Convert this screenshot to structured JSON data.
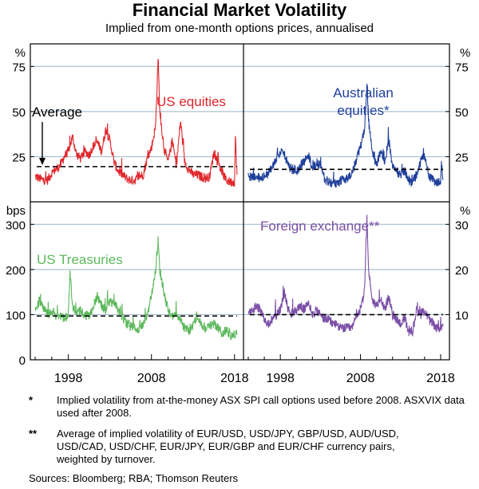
{
  "title": "Financial Market Volatility",
  "subtitle": "Implied from one-month options prices, annualised",
  "colors": {
    "us_equities": "#e0262b",
    "australian_equities": "#1f3f9a",
    "us_treasuries": "#5cb85c",
    "foreign_exchange": "#7b4fa6",
    "gridline": "#9bb3c7",
    "average_line": "#000000"
  },
  "notes": [
    {
      "mark": "*",
      "text": "Implied volatility from at-the-money ASX SPI call options used before 2008. ASXVIX data used after 2008."
    },
    {
      "mark": "**",
      "text": "Average of implied volatility of EUR/USD, USD/JPY, GBP/USD, AUD/USD, USD/CAD, USD/CHF, EUR/JPY, EUR/GBP and EUR/CHF currency pairs, weighted by turnover."
    }
  ],
  "sources": "Sources: Bloomberg; RBA; Thomson Reuters",
  "chart_data": [
    {
      "type": "line",
      "panel": "top-left",
      "series_label": "US equities",
      "unit": "%",
      "ylim": [
        0,
        87.5
      ],
      "yticks": [
        25,
        50,
        75
      ],
      "y_tick_labels": [
        "25",
        "50",
        "75"
      ],
      "xlim": [
        1994,
        2018.5
      ],
      "average": 19.5,
      "annotation": "Average",
      "points": [
        [
          1994,
          14
        ],
        [
          1994.5,
          13
        ],
        [
          1995,
          12
        ],
        [
          1995.5,
          12
        ],
        [
          1996,
          16
        ],
        [
          1996.5,
          18
        ],
        [
          1997,
          20
        ],
        [
          1997.5,
          25
        ],
        [
          1998,
          28
        ],
        [
          1998.5,
          36
        ],
        [
          1999,
          26
        ],
        [
          1999.5,
          24
        ],
        [
          2000,
          28
        ],
        [
          2000.5,
          26
        ],
        [
          2001,
          31
        ],
        [
          2001.5,
          33
        ],
        [
          2002,
          28
        ],
        [
          2002.5,
          40
        ],
        [
          2003,
          34
        ],
        [
          2003.5,
          22
        ],
        [
          2004,
          17
        ],
        [
          2004.5,
          15
        ],
        [
          2005,
          13
        ],
        [
          2005.5,
          12
        ],
        [
          2006,
          12
        ],
        [
          2006.5,
          14
        ],
        [
          2007,
          15
        ],
        [
          2007.5,
          24
        ],
        [
          2008,
          30
        ],
        [
          2008.5,
          42
        ],
        [
          2008.8,
          81
        ],
        [
          2009,
          50
        ],
        [
          2009.5,
          30
        ],
        [
          2010,
          22
        ],
        [
          2010.5,
          34
        ],
        [
          2011,
          20
        ],
        [
          2011.5,
          45
        ],
        [
          2012,
          22
        ],
        [
          2012.5,
          18
        ],
        [
          2013,
          15
        ],
        [
          2013.5,
          15
        ],
        [
          2014,
          14
        ],
        [
          2014.5,
          13
        ],
        [
          2015,
          14
        ],
        [
          2015.5,
          27
        ],
        [
          2016,
          22
        ],
        [
          2016.5,
          16
        ],
        [
          2017,
          12
        ],
        [
          2017.5,
          11
        ],
        [
          2018,
          11
        ],
        [
          2018.1,
          36
        ],
        [
          2018.3,
          15
        ]
      ]
    },
    {
      "type": "line",
      "panel": "top-right",
      "series_label": "Australian equities*",
      "unit": "%",
      "ylim": [
        0,
        87.5
      ],
      "yticks": [
        25,
        50,
        75
      ],
      "y_tick_labels": [
        "25",
        "50",
        "75"
      ],
      "xlim": [
        1994,
        2018.5
      ],
      "average": 18,
      "points": [
        [
          1994,
          15
        ],
        [
          1994.5,
          13
        ],
        [
          1995,
          14
        ],
        [
          1995.5,
          13
        ],
        [
          1996,
          14
        ],
        [
          1996.5,
          16
        ],
        [
          1997,
          20
        ],
        [
          1997.5,
          24
        ],
        [
          1998,
          28
        ],
        [
          1998.5,
          26
        ],
        [
          1999,
          20
        ],
        [
          1999.5,
          18
        ],
        [
          2000,
          17
        ],
        [
          2000.5,
          20
        ],
        [
          2001,
          22
        ],
        [
          2001.5,
          26
        ],
        [
          2002,
          18
        ],
        [
          2002.5,
          22
        ],
        [
          2003,
          20
        ],
        [
          2003.5,
          13
        ],
        [
          2004,
          11
        ],
        [
          2004.5,
          10
        ],
        [
          2005,
          10
        ],
        [
          2005.5,
          12
        ],
        [
          2006,
          12
        ],
        [
          2006.5,
          14
        ],
        [
          2007,
          16
        ],
        [
          2007.5,
          24
        ],
        [
          2008,
          30
        ],
        [
          2008.5,
          40
        ],
        [
          2008.8,
          66
        ],
        [
          2009,
          45
        ],
        [
          2009.5,
          28
        ],
        [
          2010,
          20
        ],
        [
          2010.5,
          28
        ],
        [
          2011,
          20
        ],
        [
          2011.5,
          35
        ],
        [
          2012,
          20
        ],
        [
          2012.5,
          17
        ],
        [
          2013,
          15
        ],
        [
          2013.5,
          17
        ],
        [
          2014,
          12
        ],
        [
          2014.5,
          11
        ],
        [
          2015,
          15
        ],
        [
          2015.5,
          22
        ],
        [
          2016,
          26
        ],
        [
          2016.5,
          15
        ],
        [
          2017,
          12
        ],
        [
          2017.5,
          11
        ],
        [
          2018,
          12
        ],
        [
          2018.1,
          21
        ],
        [
          2018.3,
          12
        ]
      ]
    },
    {
      "type": "line",
      "panel": "bottom-left",
      "series_label": "US Treasuries",
      "unit": "bps",
      "ylim": [
        0,
        350
      ],
      "yticks": [
        0,
        100,
        200,
        300
      ],
      "y_tick_labels": [
        "0",
        "100",
        "200",
        "300"
      ],
      "xlim": [
        1994,
        2018.5
      ],
      "x_tick_values": [
        1998,
        2008,
        2018
      ],
      "x_tick_labels": [
        "1998",
        "2008",
        "2018"
      ],
      "average": 97,
      "points": [
        [
          1994,
          110
        ],
        [
          1994.5,
          130
        ],
        [
          1995,
          115
        ],
        [
          1995.5,
          100
        ],
        [
          1996,
          105
        ],
        [
          1996.5,
          95
        ],
        [
          1997,
          100
        ],
        [
          1997.5,
          90
        ],
        [
          1998,
          100
        ],
        [
          1998.2,
          195
        ],
        [
          1998.5,
          120
        ],
        [
          1999,
          100
        ],
        [
          1999.5,
          110
        ],
        [
          2000,
          100
        ],
        [
          2000.5,
          95
        ],
        [
          2001,
          120
        ],
        [
          2001.5,
          140
        ],
        [
          2002,
          120
        ],
        [
          2002.5,
          110
        ],
        [
          2003,
          125
        ],
        [
          2003.5,
          130
        ],
        [
          2004,
          110
        ],
        [
          2004.5,
          95
        ],
        [
          2005,
          80
        ],
        [
          2005.5,
          75
        ],
        [
          2006,
          70
        ],
        [
          2006.5,
          68
        ],
        [
          2007,
          75
        ],
        [
          2007.5,
          100
        ],
        [
          2008,
          140
        ],
        [
          2008.5,
          200
        ],
        [
          2008.8,
          265
        ],
        [
          2009,
          200
        ],
        [
          2009.5,
          150
        ],
        [
          2010,
          110
        ],
        [
          2010.5,
          95
        ],
        [
          2011,
          100
        ],
        [
          2011.5,
          85
        ],
        [
          2012,
          70
        ],
        [
          2012.5,
          65
        ],
        [
          2013,
          75
        ],
        [
          2013.5,
          100
        ],
        [
          2014,
          80
        ],
        [
          2014.5,
          70
        ],
        [
          2015,
          75
        ],
        [
          2015.5,
          80
        ],
        [
          2016,
          70
        ],
        [
          2016.5,
          60
        ],
        [
          2017,
          65
        ],
        [
          2017.5,
          55
        ],
        [
          2018,
          55
        ],
        [
          2018.3,
          60
        ]
      ]
    },
    {
      "type": "line",
      "panel": "bottom-right",
      "series_label": "Foreign exchange**",
      "unit": "%",
      "ylim": [
        0,
        35
      ],
      "yticks": [
        10,
        20,
        30
      ],
      "y_tick_labels": [
        "10",
        "20",
        "30"
      ],
      "xlim": [
        1994,
        2018.5
      ],
      "x_tick_values": [
        1998,
        2008,
        2018
      ],
      "x_tick_labels": [
        "1998",
        "2008",
        "2018"
      ],
      "average": 10,
      "points": [
        [
          1994,
          10
        ],
        [
          1994.5,
          11
        ],
        [
          1995,
          12
        ],
        [
          1995.5,
          11
        ],
        [
          1996,
          9
        ],
        [
          1996.5,
          8
        ],
        [
          1997,
          9
        ],
        [
          1997.5,
          10
        ],
        [
          1998,
          11
        ],
        [
          1998.5,
          15
        ],
        [
          1999,
          11
        ],
        [
          1999.5,
          10
        ],
        [
          2000,
          11
        ],
        [
          2000.5,
          12
        ],
        [
          2001,
          11
        ],
        [
          2001.5,
          13
        ],
        [
          2002,
          10
        ],
        [
          2002.5,
          11
        ],
        [
          2003,
          10
        ],
        [
          2003.5,
          9
        ],
        [
          2004,
          9
        ],
        [
          2004.5,
          8
        ],
        [
          2005,
          8
        ],
        [
          2005.5,
          7
        ],
        [
          2006,
          7
        ],
        [
          2006.5,
          7
        ],
        [
          2007,
          7
        ],
        [
          2007.5,
          10
        ],
        [
          2008,
          11
        ],
        [
          2008.5,
          15
        ],
        [
          2008.8,
          32
        ],
        [
          2009,
          20
        ],
        [
          2009.5,
          13
        ],
        [
          2010,
          12
        ],
        [
          2010.5,
          14
        ],
        [
          2011,
          11
        ],
        [
          2011.5,
          14
        ],
        [
          2012,
          10
        ],
        [
          2012.5,
          9
        ],
        [
          2013,
          8
        ],
        [
          2013.5,
          9
        ],
        [
          2014,
          6
        ],
        [
          2014.5,
          6
        ],
        [
          2015,
          11
        ],
        [
          2015.5,
          10
        ],
        [
          2016,
          11
        ],
        [
          2016.5,
          9
        ],
        [
          2017,
          8
        ],
        [
          2017.5,
          7
        ],
        [
          2018,
          7
        ],
        [
          2018.3,
          8
        ]
      ]
    }
  ]
}
